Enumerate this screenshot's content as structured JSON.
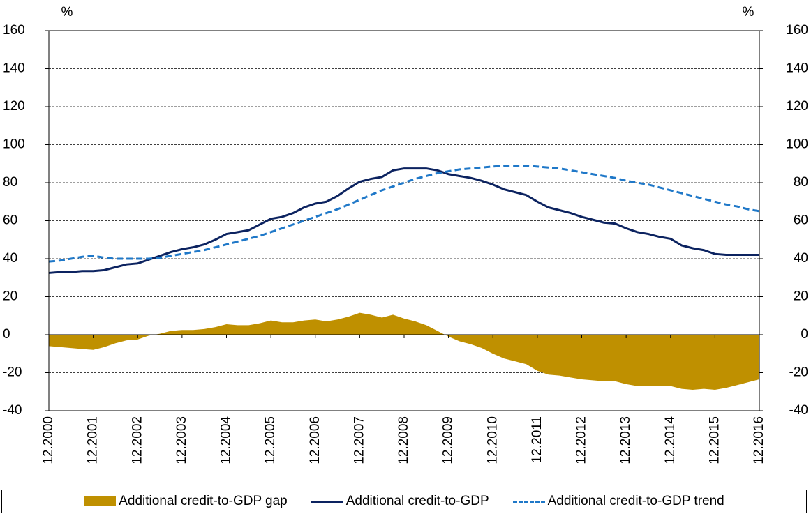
{
  "chart_data": {
    "type": "line",
    "y_label": "%",
    "y2_label": "%",
    "categories": [
      "12.2000",
      null,
      null,
      null,
      "12.2001",
      null,
      null,
      null,
      "12.2002",
      null,
      null,
      null,
      "12.2003",
      null,
      null,
      null,
      "12.2004",
      null,
      null,
      null,
      "12.2005",
      null,
      null,
      null,
      "12.2006",
      null,
      null,
      null,
      "12.2007",
      null,
      null,
      null,
      "12.2008",
      null,
      null,
      null,
      "12.2009",
      null,
      null,
      null,
      "12.2010",
      null,
      null,
      null,
      "12.2011",
      null,
      null,
      null,
      "12.2012",
      null,
      null,
      null,
      "12.2013",
      null,
      null,
      null,
      "12.2014",
      null,
      null,
      null,
      "12.2015",
      null,
      null,
      null,
      "12.2016"
    ],
    "series": [
      {
        "name": "Additional credit-to-GDP gap",
        "type": "area",
        "color": "#bf9000",
        "values": [
          -6,
          -6.5,
          -7,
          -7.5,
          -8,
          -6.5,
          -4.5,
          -3,
          -2.5,
          -0.5,
          0.5,
          2,
          2.5,
          2.5,
          3,
          4,
          5.5,
          5,
          5,
          6,
          7.5,
          6.5,
          6.5,
          7.5,
          8,
          7,
          8,
          9.5,
          11.5,
          10.5,
          9,
          10.5,
          8.5,
          7,
          5,
          2,
          -1,
          -3.5,
          -5,
          -7,
          -10,
          -12.5,
          -14,
          -15.5,
          -19,
          -21,
          -21.5,
          -22.5,
          -23.5,
          -24,
          -24.5,
          -24.5,
          -26,
          -27,
          -27,
          -27,
          -27,
          -28.5,
          -29,
          -28.5,
          -29,
          -28,
          -26.5,
          -25,
          -23.5
        ]
      },
      {
        "name": "Additional credit-to-GDP",
        "type": "line",
        "color": "#0c2360",
        "dashed": false,
        "values": [
          32.5,
          33,
          33,
          33.5,
          33.5,
          34,
          35.5,
          37,
          37.5,
          39.5,
          41.5,
          43.5,
          45,
          46,
          47.5,
          50,
          53,
          54,
          55,
          58,
          61,
          62,
          64,
          67,
          69,
          70,
          73,
          77,
          80.5,
          82,
          83,
          86.5,
          87.5,
          87.5,
          87.5,
          86.5,
          84.5,
          83.5,
          82.5,
          81,
          79,
          76.5,
          75,
          73.5,
          70,
          67,
          65.5,
          64,
          62,
          60.5,
          59,
          58.5,
          56,
          54,
          53,
          51.5,
          50.5,
          47,
          45.5,
          44.5,
          42.5,
          42,
          42,
          42,
          42
        ]
      },
      {
        "name": "Additional credit-to-GDP trend",
        "type": "line",
        "color": "#1f78c8",
        "dashed": true,
        "values": [
          38.5,
          39,
          40,
          41,
          41.5,
          40.5,
          40,
          40,
          40,
          40,
          40.5,
          41.5,
          42.5,
          43.5,
          44.5,
          46,
          47.5,
          49,
          50.5,
          52,
          54,
          56,
          58,
          60,
          62,
          64,
          66,
          68.5,
          71,
          73.5,
          76,
          78,
          80,
          82,
          83.5,
          85,
          86,
          87,
          87.5,
          88,
          88.5,
          89,
          89,
          89,
          88.5,
          88,
          87.5,
          86.5,
          85.5,
          84.5,
          83.5,
          82.5,
          81,
          80,
          79,
          77.5,
          76,
          74.5,
          73,
          71.5,
          70,
          68.5,
          67.5,
          66,
          65
        ]
      }
    ],
    "ylim": [
      -40,
      160
    ],
    "yticks": [
      -40,
      -20,
      0,
      20,
      40,
      60,
      80,
      100,
      120,
      140,
      160
    ],
    "y2lim": [
      -40,
      160
    ],
    "y2ticks": [
      -40,
      -20,
      0,
      20,
      40,
      60,
      80,
      100,
      120,
      140,
      160
    ],
    "grid": true,
    "legend": "bottom"
  }
}
